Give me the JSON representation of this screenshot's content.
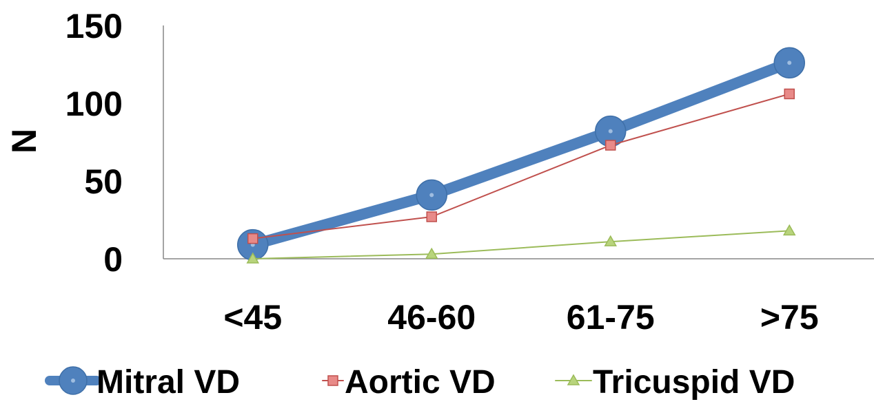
{
  "chart_data": {
    "type": "line",
    "title": "",
    "xlabel": "",
    "ylabel": "N",
    "ylim": [
      0,
      150
    ],
    "yticks": [
      "0",
      "50",
      "100",
      "150"
    ],
    "categories": [
      "<45",
      "46-60",
      "61-75",
      ">75"
    ],
    "grid": false,
    "legend_position": "bottom",
    "series": [
      {
        "name": "Mitral VD",
        "values": [
          9,
          41,
          82,
          126
        ],
        "color": "#4F81BD",
        "marker": "circle"
      },
      {
        "name": "Aortic VD",
        "values": [
          13,
          27,
          73,
          106
        ],
        "color": "#C0504D",
        "marker": "square"
      },
      {
        "name": "Tricuspid VD",
        "values": [
          0,
          3,
          11,
          18
        ],
        "color": "#9BBB59",
        "marker": "triangle"
      }
    ]
  }
}
